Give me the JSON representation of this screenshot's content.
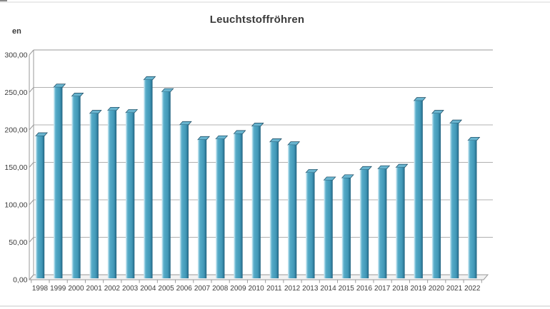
{
  "window": {
    "top_border": "",
    "bottom_border": ""
  },
  "header": {
    "y_axis_title_fragment": "en"
  },
  "chart_data": {
    "type": "bar",
    "title": "Leuchtstoffröhren",
    "categories": [
      "1998",
      "1999",
      "2000",
      "2001",
      "2002",
      "2003",
      "2004",
      "2005",
      "2006",
      "2007",
      "2008",
      "2009",
      "2010",
      "2011",
      "2012",
      "2013",
      "2014",
      "2015",
      "2016",
      "2017",
      "2018",
      "2019",
      "2020",
      "2021",
      "2022"
    ],
    "values": [
      190,
      255,
      243,
      220,
      224,
      221,
      265,
      249,
      205,
      185,
      186,
      193,
      203,
      182,
      178,
      141,
      131,
      134,
      145,
      146,
      148,
      237,
      220,
      207,
      184
    ],
    "xlabel": "",
    "ylabel": "",
    "ylim": [
      0,
      300
    ],
    "grid": true,
    "legend": "none",
    "style": "3d-column",
    "y_axis": {
      "ticks": [
        {
          "value": 300,
          "label": "300,00"
        },
        {
          "value": 250,
          "label": "250,00"
        },
        {
          "value": 200,
          "label": "200,00"
        },
        {
          "value": 150,
          "label": "150,00"
        },
        {
          "value": 100,
          "label": "100,00"
        },
        {
          "value": 50,
          "label": "50,00"
        },
        {
          "value": 0,
          "label": "0,00"
        }
      ]
    },
    "colors": {
      "bar_body": "#4ba2c0",
      "bar_highlight": "#b7dfec",
      "bar_shadow": "#1f5d79",
      "bar_top_face": "#68b4cf",
      "bar_top_stroke": "#17455c",
      "gridline": "#b0b0b0",
      "axis": "#9a9a9a",
      "floor_fill": "#f2f2f2",
      "label_text": "#3d3d3d",
      "title_text": "#3b3b3b"
    }
  }
}
